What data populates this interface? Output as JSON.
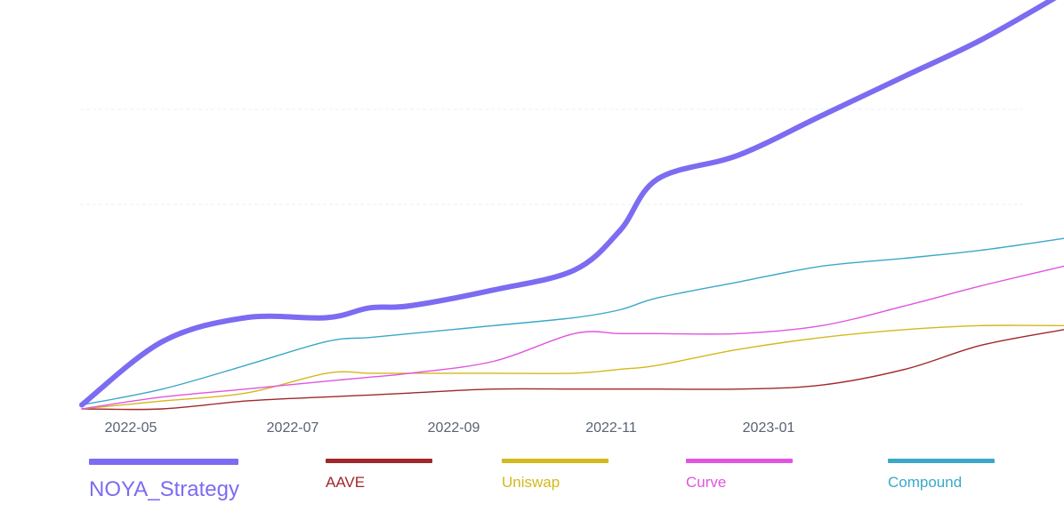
{
  "chart_data": {
    "type": "line",
    "title": "",
    "xlabel": "",
    "ylabel": "",
    "x_ticks": [
      "2022-05",
      "2022-07",
      "2022-09",
      "2022-11",
      "2023-01"
    ],
    "x": [
      "2022-04-15",
      "2022-05-15",
      "2022-06-15",
      "2022-07-15",
      "2022-07-31",
      "2022-08-15",
      "2022-09-15",
      "2022-10-15",
      "2022-11-01",
      "2022-11-15",
      "2022-12-15",
      "2023-01-15",
      "2023-02-15",
      "2023-03-15",
      "2023-04-15"
    ],
    "grid": true,
    "ylim": [
      0,
      100
    ],
    "legend_position": "bottom",
    "series": [
      {
        "name": "NOYA_Strategy",
        "color": "#7b6cf2",
        "values": [
          1,
          17,
          23,
          23,
          25.5,
          26,
          30,
          35,
          45,
          58,
          64,
          74,
          84,
          93,
          105
        ]
      },
      {
        "name": "AAVE",
        "color": "#a0282c",
        "values": [
          0,
          0,
          2,
          3,
          3.5,
          4,
          5,
          5,
          5,
          5,
          5,
          6,
          10,
          16,
          20
        ]
      },
      {
        "name": "Uniswap",
        "color": "#d4b81c",
        "values": [
          0,
          2,
          4,
          9,
          9,
          9,
          9,
          9,
          10,
          11,
          15,
          18,
          20,
          21,
          21
        ]
      },
      {
        "name": "Curve",
        "color": "#e055e0",
        "values": [
          0,
          3,
          5,
          7,
          8,
          9,
          12,
          19,
          19,
          19,
          19,
          21,
          26,
          31,
          36
        ]
      },
      {
        "name": "Compound",
        "color": "#3aa8c8",
        "values": [
          1,
          5,
          11,
          17,
          18,
          19,
          21,
          23,
          25,
          28,
          32,
          36,
          38,
          40,
          43
        ]
      }
    ]
  }
}
